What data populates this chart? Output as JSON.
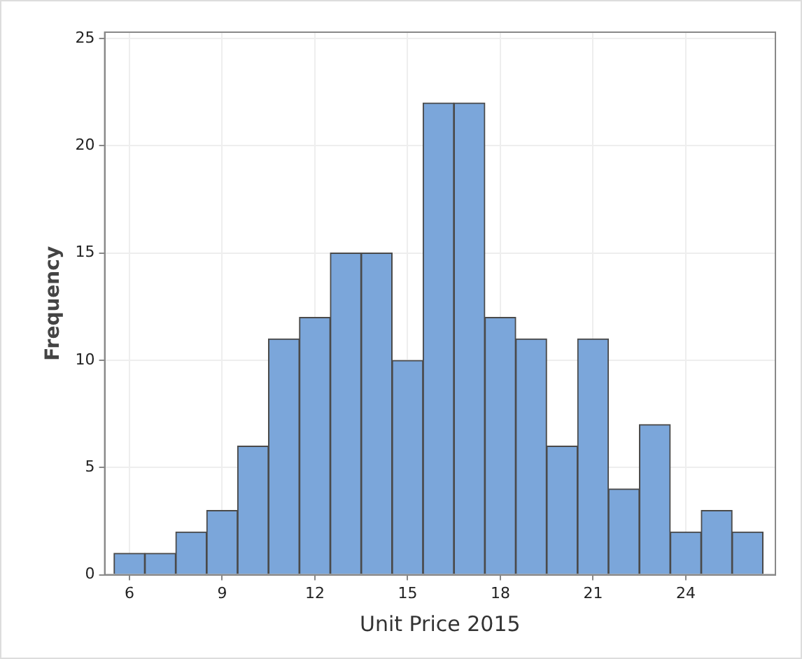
{
  "chart_data": {
    "type": "histogram",
    "xlabel": "Unit Price 2015",
    "ylabel": "Frequency",
    "bins": [
      5.5,
      6.5,
      7.5,
      8.5,
      9.5,
      10.5,
      11.5,
      12.5,
      13.5,
      14.5,
      15.5,
      16.5,
      17.5,
      18.5,
      19.5,
      20.5,
      21.5,
      22.5,
      23.5,
      24.5,
      25.5,
      26.5
    ],
    "values": [
      1,
      1,
      2,
      3,
      6,
      11,
      12,
      15,
      15,
      10,
      22,
      22,
      12,
      11,
      6,
      11,
      4,
      7,
      2,
      3,
      2
    ],
    "color": "#7ba6da",
    "xlim": [
      5.2,
      26.9
    ],
    "xticks": [
      6,
      9,
      12,
      15,
      18,
      21,
      24
    ],
    "ylim": [
      0,
      25.3
    ],
    "yticks": [
      0,
      5,
      10,
      15,
      20,
      25
    ],
    "grid": true
  }
}
